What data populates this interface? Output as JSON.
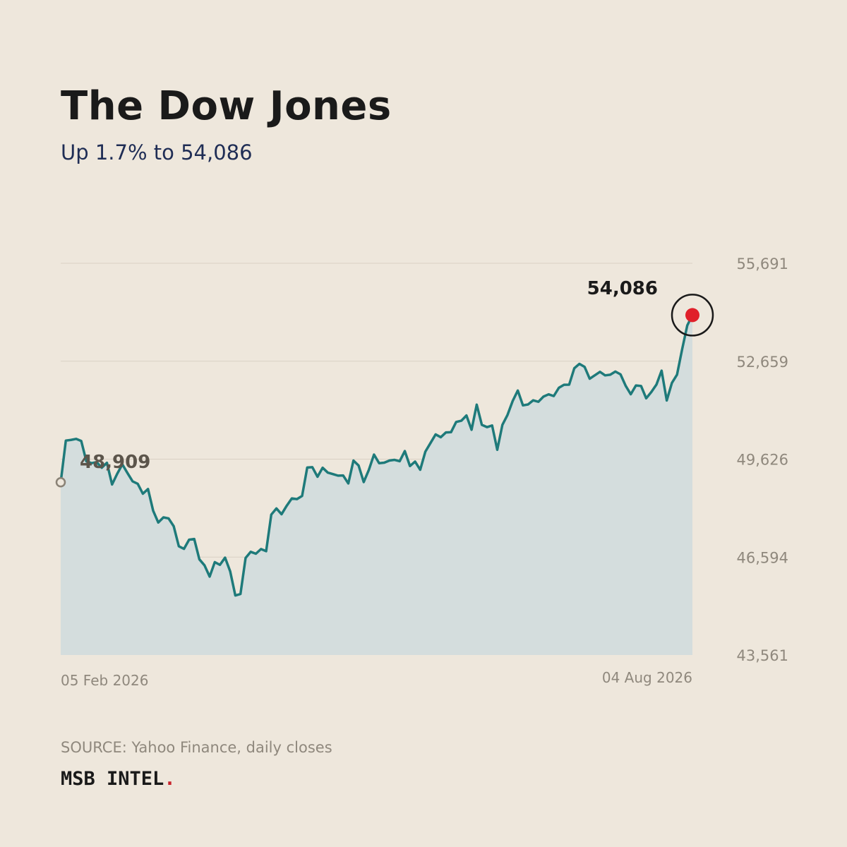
{
  "header": {
    "title": "The Dow Jones",
    "subtitle": "Up 1.7% to 54,086"
  },
  "footer": {
    "source": "SOURCE: Yahoo Finance, daily closes",
    "brand": "MSB INTEL",
    "brand_dot": "."
  },
  "colors": {
    "background": "#EEE7DC",
    "line": "#1E7A7A",
    "area_fill": "#D4DDDD",
    "grid": "#D9D1C4",
    "tick_text": "#8F887D",
    "end_marker": "#E0202A",
    "brand_dot": "#C8232C"
  },
  "chart_data": {
    "type": "area",
    "title": "",
    "xlabel": "",
    "ylabel": "",
    "y_ticks": [
      "43,561",
      "46,594",
      "49,626",
      "52,659",
      "55,691"
    ],
    "x_ticks": [
      "05 Feb 2026",
      "04 Aug 2026"
    ],
    "ylim": [
      43561,
      55691
    ],
    "grid": "horizontal",
    "start_label": "48,909",
    "end_label": "54,086",
    "start_value": 48909,
    "end_value": 54086,
    "series": [
      {
        "values": [
          48909,
          50201,
          50222,
          50253,
          50189,
          49557,
          49502,
          49535,
          49360,
          49513,
          48842,
          49172,
          49464,
          49196,
          48939,
          48863,
          48555,
          48701,
          48029,
          47664,
          47823,
          47791,
          47550,
          46927,
          46848,
          47132,
          47153,
          46524,
          46338,
          45989,
          46437,
          46353,
          46576,
          46152,
          45405,
          45450,
          46567,
          46756,
          46697,
          46842,
          46776,
          47909,
          48100,
          47920,
          48182,
          48411,
          48389,
          48486,
          49366,
          49377,
          49080,
          49360,
          49209,
          49164,
          49115,
          49120,
          48873,
          49582,
          49429,
          48917,
          49293,
          49768,
          49501,
          49517,
          49583,
          49604,
          49562,
          49876,
          49413,
          49550,
          49297,
          49859,
          50124,
          50392,
          50305,
          50453,
          50461,
          50777,
          50815,
          50978,
          50535,
          51313,
          50688,
          50617,
          50668,
          49916,
          50687,
          50997,
          51426,
          51751,
          51291,
          51320,
          51448,
          51402,
          51563,
          51633,
          51579,
          51836,
          51930,
          51931,
          52440,
          52577,
          52484,
          52116,
          52223,
          52329,
          52220,
          52240,
          52339,
          52252,
          51898,
          51636,
          51907,
          51892,
          51510,
          51705,
          51938,
          52366,
          51443,
          51985,
          52241,
          53031,
          53768,
          54086
        ]
      }
    ]
  }
}
